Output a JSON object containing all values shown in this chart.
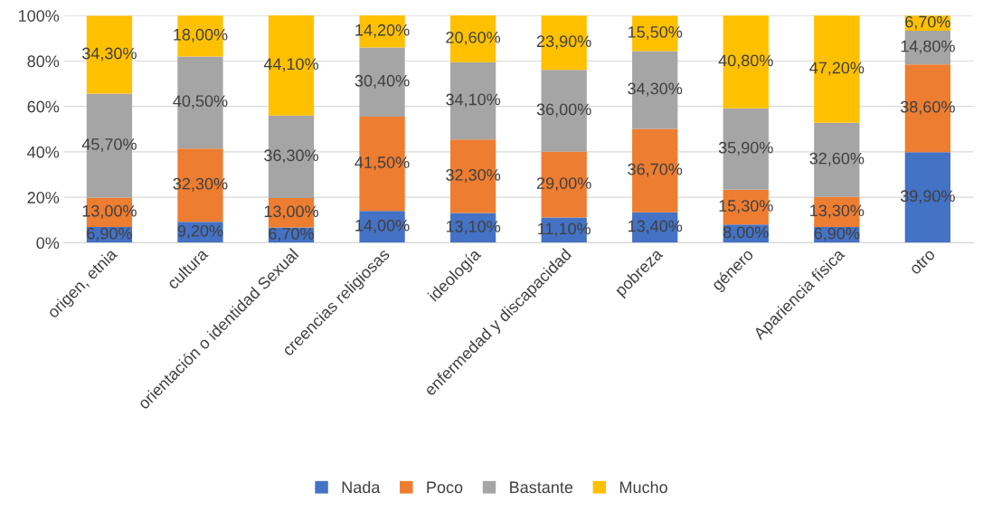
{
  "chart_data": {
    "type": "bar",
    "stacked": true,
    "categories": [
      "origen, etnia",
      "cultura",
      "orientación o identidad Sexual",
      "creencias religiosas",
      "ideología",
      "enfermedad y discapacidad",
      "pobreza",
      "género",
      "Apariencia física",
      "otro"
    ],
    "series": [
      {
        "name": "Nada",
        "color": "#4472c4",
        "values": [
          6.9,
          9.2,
          6.7,
          14.0,
          13.1,
          11.1,
          13.4,
          8.0,
          6.9,
          39.9
        ],
        "value_labels": [
          "6,90%",
          "9,20%",
          "6,70%",
          "14,00%",
          "13,10%",
          "11,10%",
          "13,40%",
          "8,00%",
          "6,90%",
          "39,90%"
        ]
      },
      {
        "name": "Poco",
        "color": "#ed7d31",
        "values": [
          13.0,
          32.3,
          13.0,
          41.5,
          32.3,
          29.0,
          36.7,
          15.3,
          13.3,
          38.6
        ],
        "value_labels": [
          "13,00%",
          "32,30%",
          "13,00%",
          "41,50%",
          "32,30%",
          "29,00%",
          "36,70%",
          "15,30%",
          "13,30%",
          "38,60%"
        ]
      },
      {
        "name": "Bastante",
        "color": "#a5a5a5",
        "values": [
          45.7,
          40.5,
          36.3,
          30.4,
          34.1,
          36.0,
          34.3,
          35.9,
          32.6,
          14.8
        ],
        "value_labels": [
          "45,70%",
          "40,50%",
          "36,30%",
          "30,40%",
          "34,10%",
          "36,00%",
          "34,30%",
          "35,90%",
          "32,60%",
          "14,80%"
        ]
      },
      {
        "name": "Mucho",
        "color": "#ffc000",
        "values": [
          34.3,
          18.0,
          44.1,
          14.2,
          20.6,
          23.9,
          15.5,
          40.8,
          47.2,
          6.7
        ],
        "value_labels": [
          "34,30%",
          "18,00%",
          "44,10%",
          "14,20%",
          "20,60%",
          "23,90%",
          "15,50%",
          "40,80%",
          "47,20%",
          "6,70%"
        ]
      }
    ],
    "ylim": [
      0,
      100.1
    ],
    "yticks": [
      {
        "value": 0,
        "label": "0%"
      },
      {
        "value": 20,
        "label": "20%"
      },
      {
        "value": 40,
        "label": "40%"
      },
      {
        "value": 60,
        "label": "60%"
      },
      {
        "value": 80,
        "label": "80%"
      },
      {
        "value": 100,
        "label": "100%"
      }
    ],
    "grid": "y",
    "legend": "bottom"
  }
}
